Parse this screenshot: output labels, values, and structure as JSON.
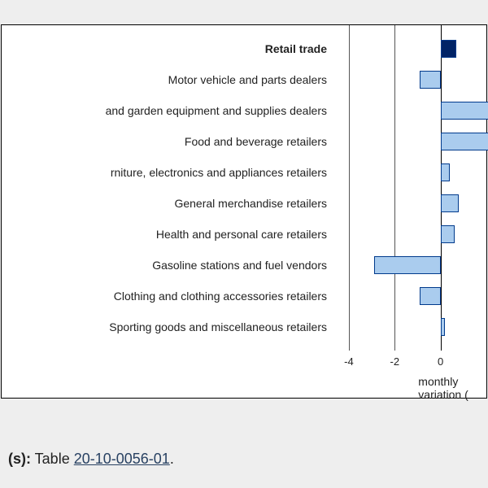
{
  "chart": {
    "type": "bar-horizontal",
    "background_color": "#ffffff",
    "page_background": "#eeeeee",
    "label_fontsize": 14,
    "tick_fontsize": 13,
    "axis_title": "monthly variation (",
    "axis_title_fontsize": 14,
    "x_domain": [
      -4.6,
      2.0
    ],
    "ticks": [
      -4,
      -2,
      0
    ],
    "bar_fill_default": "#aaccee",
    "bar_fill_highlight": "#002366",
    "bar_border": "#003a8c",
    "grid_main_color": "#555555",
    "grid_zero_color": "#000000",
    "bar_thickness": 22,
    "row_step": 38,
    "top_padding": 18,
    "categories": [
      {
        "label": "Retail trade",
        "value": 0.7,
        "bold": true,
        "highlight": true
      },
      {
        "label": "Motor vehicle and parts dealers",
        "value": -0.9
      },
      {
        "label": "and garden equipment and supplies dealers",
        "value": 2.4
      },
      {
        "label": "Food and beverage retailers",
        "value": 2.4
      },
      {
        "label": "rniture, electronics and appliances retailers",
        "value": 0.4
      },
      {
        "label": "General merchandise retailers",
        "value": 0.8
      },
      {
        "label": "Health and personal care retailers",
        "value": 0.6
      },
      {
        "label": "Gasoline stations and fuel vendors",
        "value": -2.9
      },
      {
        "label": "Clothing and clothing accessories retailers",
        "value": -0.9
      },
      {
        "label": "Sporting goods and miscellaneous retailers",
        "value": 0.2
      }
    ]
  },
  "source": {
    "prefix_bold": "(s):",
    "middle": "  Table ",
    "link_text": "20-10-0056-01",
    "link_color": "#284162",
    "suffix": "."
  }
}
